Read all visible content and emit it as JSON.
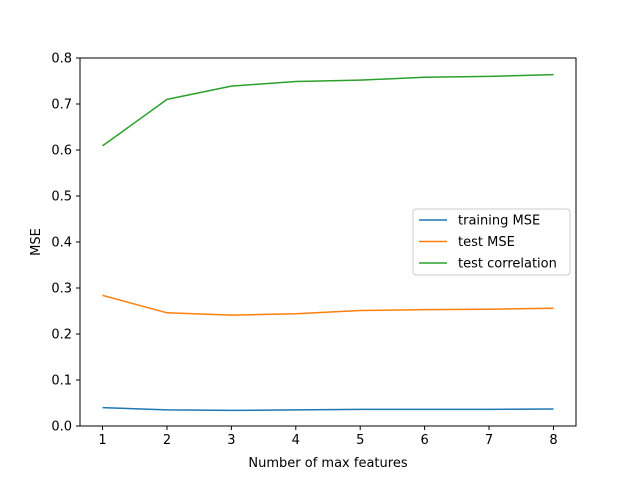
{
  "chart_data": {
    "type": "line",
    "title": "",
    "xlabel": "Number of max features",
    "ylabel": "MSE",
    "x": [
      1,
      2,
      3,
      4,
      5,
      6,
      7,
      8
    ],
    "xlim": [
      0.65,
      8.35
    ],
    "ylim": [
      0.0,
      0.8
    ],
    "xticks": [
      1,
      2,
      3,
      4,
      5,
      6,
      7,
      8
    ],
    "yticks": [
      0.0,
      0.1,
      0.2,
      0.3,
      0.4,
      0.5,
      0.6,
      0.7,
      0.8
    ],
    "grid": false,
    "legend_position": "center-right",
    "series": [
      {
        "name": "training MSE",
        "color": "#1f77b4",
        "values": [
          0.04,
          0.035,
          0.034,
          0.035,
          0.036,
          0.036,
          0.036,
          0.037
        ]
      },
      {
        "name": "test MSE",
        "color": "#ff7f0e",
        "values": [
          0.284,
          0.246,
          0.241,
          0.244,
          0.251,
          0.253,
          0.254,
          0.256
        ]
      },
      {
        "name": "test correlation",
        "color": "#2ca02c",
        "values": [
          0.609,
          0.71,
          0.739,
          0.749,
          0.752,
          0.758,
          0.76,
          0.764
        ]
      }
    ]
  }
}
